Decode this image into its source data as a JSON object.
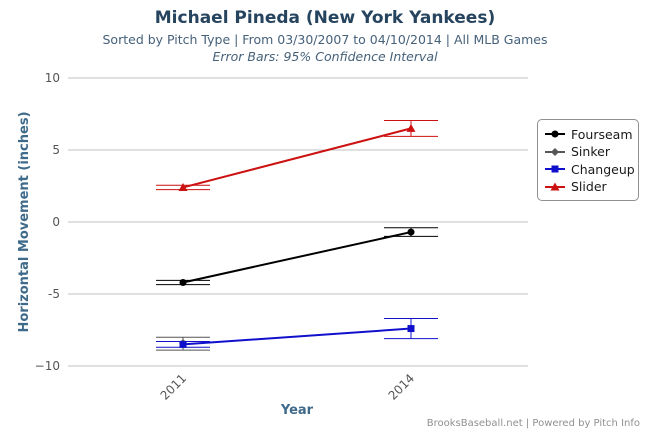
{
  "header": {
    "title": "Michael Pineda (New York Yankees)",
    "subtitle": "Sorted by Pitch Type | From 03/30/2007 to 04/10/2014 | All MLB Games",
    "subtitle2": "Error Bars: 95% Confidence Interval"
  },
  "chart_data": {
    "type": "line",
    "xlabel": "Year",
    "ylabel": "Horizontal Movement (inches)",
    "categories": [
      "2011",
      "2014"
    ],
    "ylim": [
      -10,
      10
    ],
    "yticks": [
      10,
      5,
      0,
      -5,
      -10
    ],
    "ytick_labels": [
      "10",
      "5",
      "0",
      "-5",
      "−10"
    ],
    "grid": "horizontal",
    "legend_position": "right",
    "series": [
      {
        "name": "Fourseam",
        "color": "#000000",
        "marker": "circle",
        "values": [
          -4.2,
          -0.7
        ],
        "err_low": [
          -4.35,
          -1.0
        ],
        "err_high": [
          -4.05,
          -0.4
        ]
      },
      {
        "name": "Sinker",
        "color": "#555555",
        "marker": "diamond",
        "values": [
          -8.4,
          null
        ],
        "err_low": [
          -8.9,
          null
        ],
        "err_high": [
          -8.0,
          null
        ]
      },
      {
        "name": "Changeup",
        "color": "#1010cc",
        "marker": "square",
        "values": [
          -8.5,
          -7.4
        ],
        "err_low": [
          -8.7,
          -8.1
        ],
        "err_high": [
          -8.3,
          -6.7
        ]
      },
      {
        "name": "Slider",
        "color": "#cc1111",
        "marker": "triangle",
        "values": [
          2.4,
          6.5
        ],
        "err_low": [
          2.25,
          5.95
        ],
        "err_high": [
          2.55,
          7.05
        ]
      }
    ]
  },
  "footer": {
    "credit": "BrooksBaseball.net | Powered by Pitch Info"
  }
}
